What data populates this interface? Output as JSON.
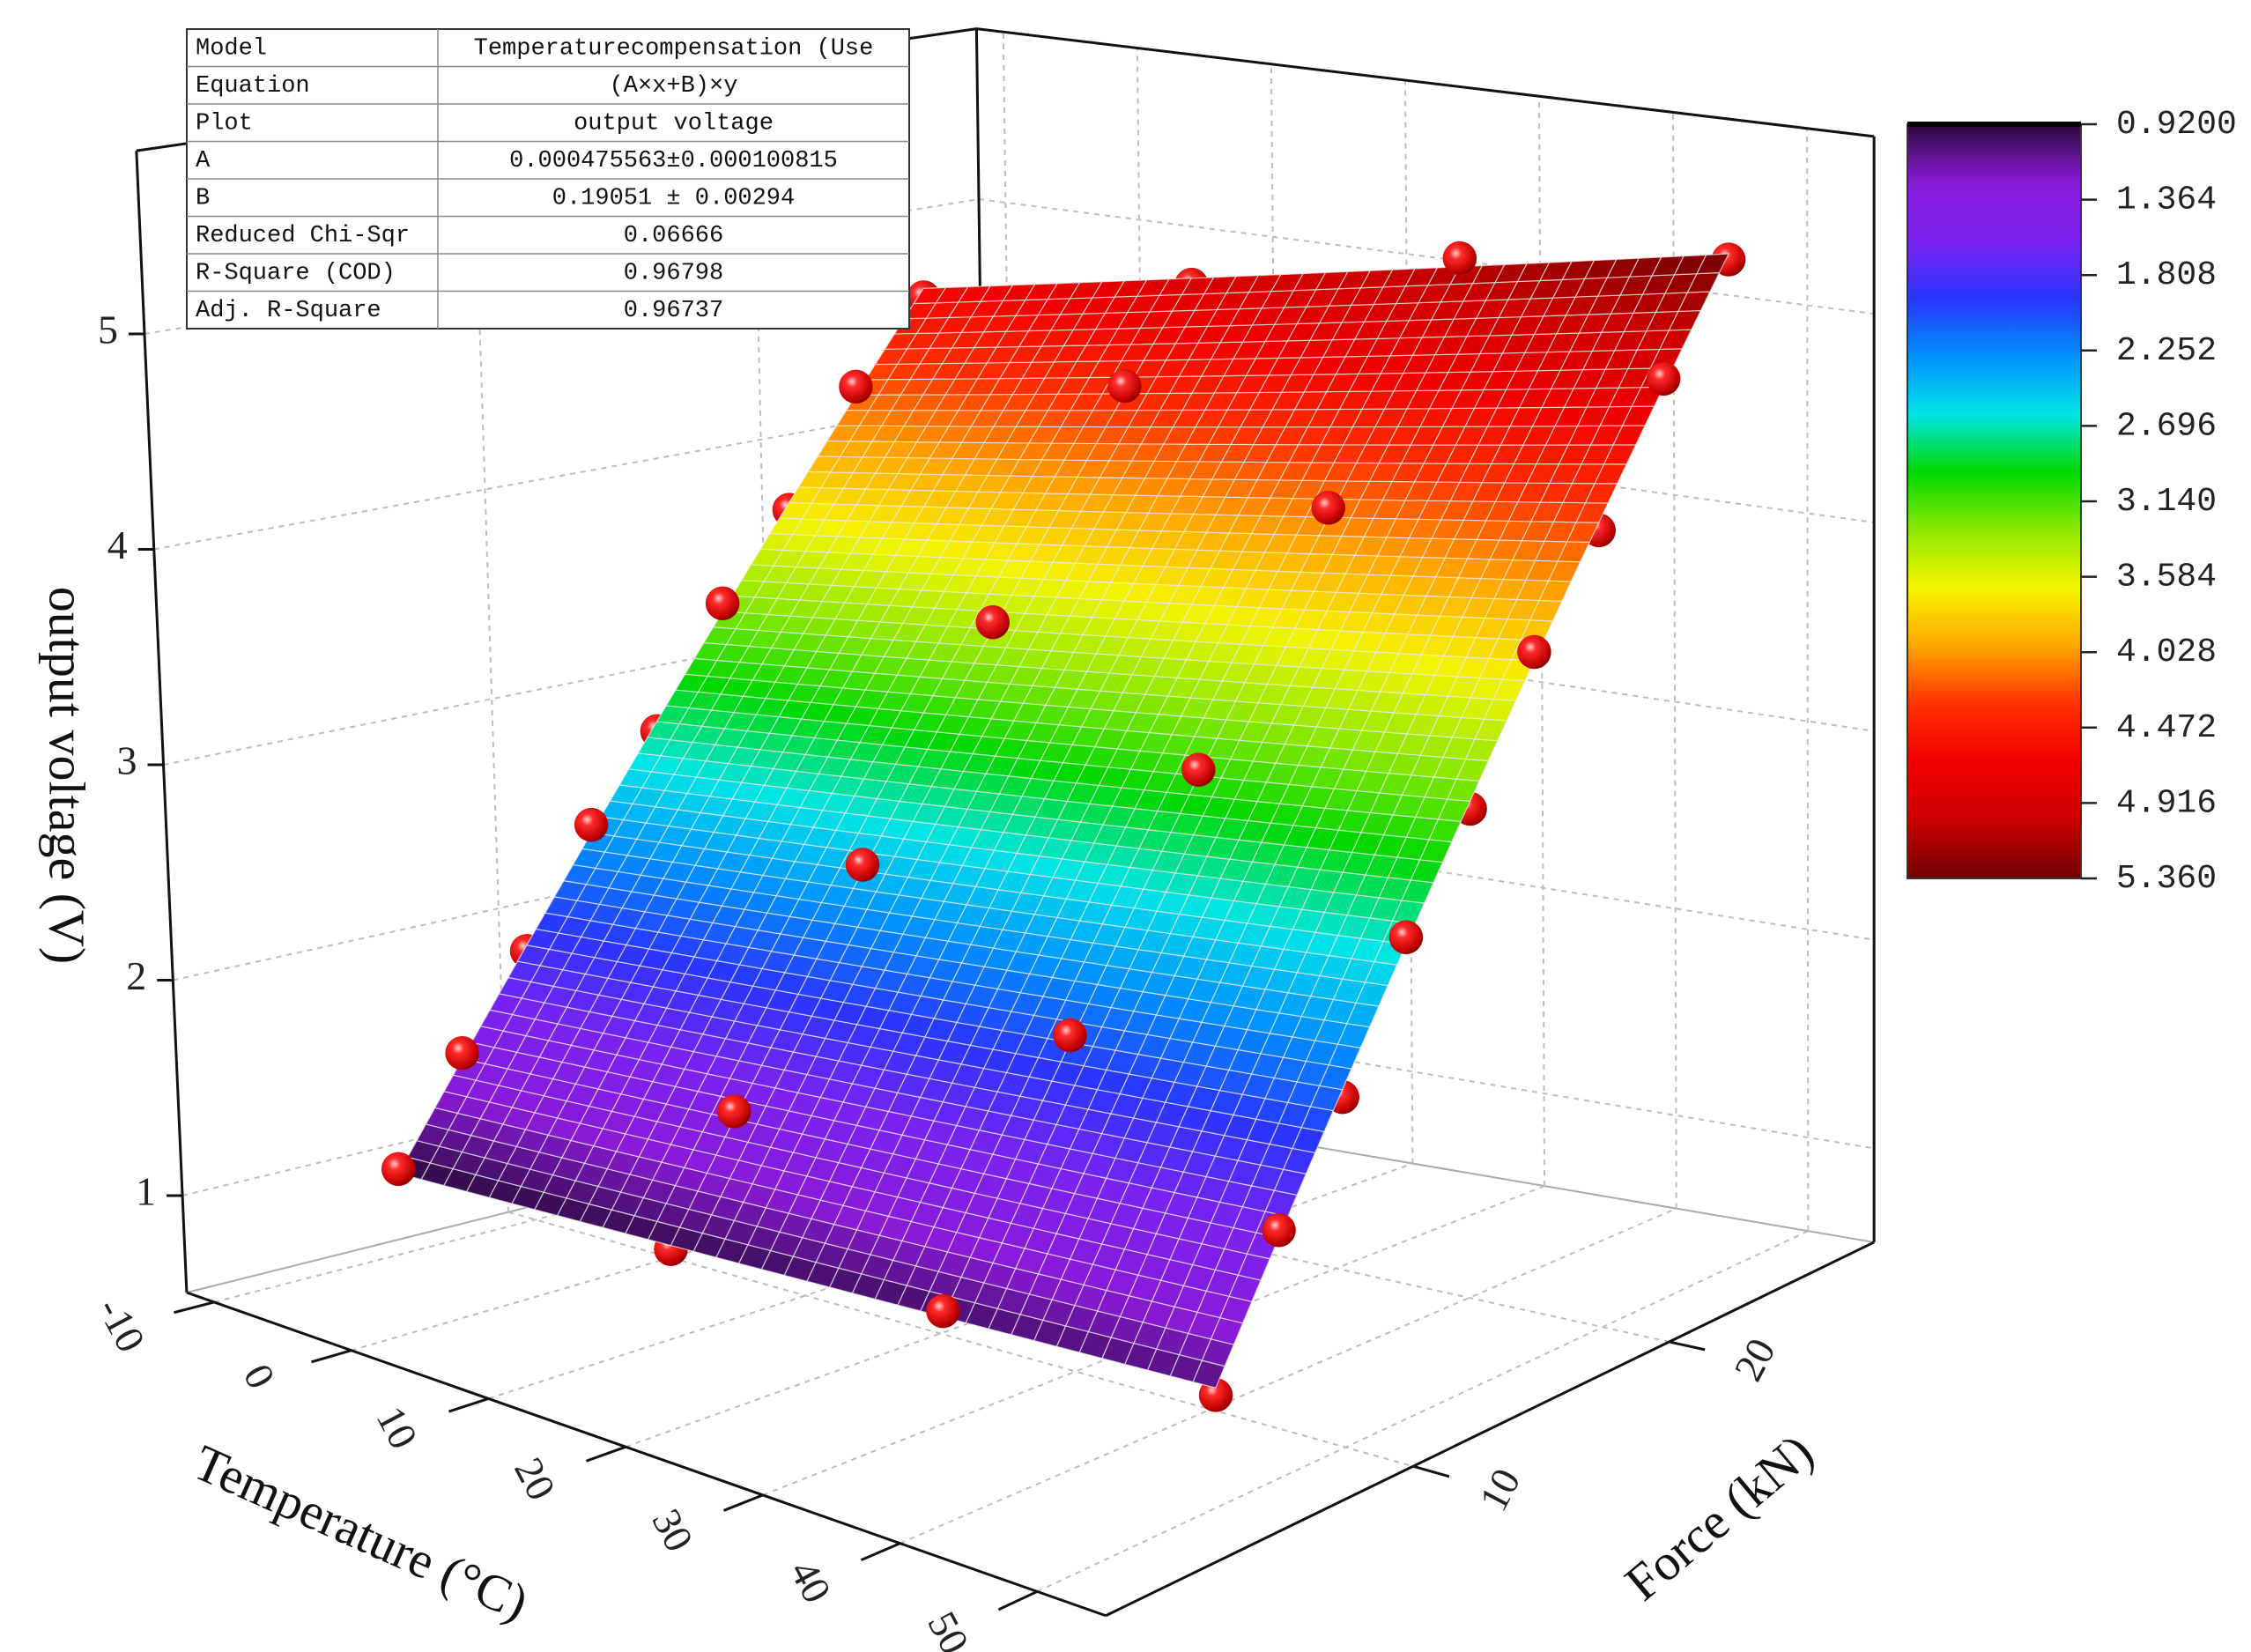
{
  "chart_data": {
    "type": "surface3d",
    "x_label": "Temperature (°C)",
    "y_label": "Force (kN)",
    "z_label": "output voltage (V)",
    "xlim": [
      -12,
      55
    ],
    "xticks": [
      -10,
      0,
      10,
      20,
      30,
      40,
      50
    ],
    "ylim": [
      -2,
      28
    ],
    "yticks": [
      10,
      20
    ],
    "zlim": [
      0.55,
      5.85
    ],
    "zticks": [
      1,
      2,
      3,
      4,
      5
    ],
    "grid": true,
    "surface": {
      "x": [
        -10,
        50
      ],
      "y": [
        5,
        25
      ],
      "z": [
        [
          0.929,
          4.644
        ],
        [
          1.072,
          5.357
        ]
      ]
    },
    "points": {
      "color": "#e00000",
      "x": [
        -10,
        -10,
        -10,
        -10,
        -10,
        -10,
        -10,
        -10,
        -10,
        10,
        10,
        10,
        10,
        10,
        10,
        10,
        10,
        10,
        30,
        30,
        30,
        30,
        30,
        30,
        30,
        30,
        30,
        50,
        50,
        50,
        50,
        50,
        50,
        50,
        50,
        50
      ],
      "y": [
        5,
        7.5,
        10,
        12.5,
        15,
        17.5,
        20,
        22.5,
        25,
        5,
        7.5,
        10,
        12.5,
        15,
        17.5,
        20,
        22.5,
        25,
        5,
        7.5,
        10,
        12.5,
        15,
        17.5,
        20,
        22.5,
        25,
        5,
        7.5,
        10,
        12.5,
        15,
        17.5,
        20,
        22.5,
        25
      ],
      "values": [
        0.95,
        1.42,
        1.83,
        2.36,
        2.74,
        3.29,
        3.68,
        4.22,
        4.6,
        0.96,
        1.5,
        1.93,
        2.47,
        2.9,
        3.45,
        3.88,
        4.43,
        4.85,
        1.05,
        1.51,
        2.08,
        2.53,
        3.1,
        3.55,
        4.14,
        4.58,
        5.16,
        1.04,
        1.64,
        2.11,
        2.71,
        3.18,
        3.79,
        4.25,
        4.86,
        5.33
      ]
    },
    "colormap": [
      "#2a0a3a",
      "#8a1ad8",
      "#7b22f0",
      "#2a35ff",
      "#0090ff",
      "#00e5e5",
      "#00d800",
      "#8ee800",
      "#f5f500",
      "#ffa500",
      "#ff3000",
      "#f00000",
      "#cc0000",
      "#700000"
    ],
    "colorbar_ticks": [
      {
        "value": 0.92,
        "label": "0.9200"
      },
      1.364,
      1.808,
      2.252,
      2.696,
      {
        "value": 3.14,
        "label": "3.140"
      },
      3.584,
      4.028,
      4.472,
      4.916,
      {
        "value": 5.36,
        "label": "5.360"
      }
    ]
  },
  "fit_table": {
    "rows": [
      [
        "Model",
        "Temperaturecompensation (Use"
      ],
      [
        "Equation",
        "(A×x+B)×y"
      ],
      [
        "Plot",
        "output voltage"
      ],
      [
        "A",
        "0.000475563±0.000100815"
      ],
      [
        "B",
        "0.19051 ± 0.00294"
      ],
      [
        "Reduced Chi-Sqr",
        "0.06666"
      ],
      [
        "R-Square (COD)",
        "0.96798"
      ],
      [
        "Adj. R-Square",
        "0.96737"
      ]
    ]
  }
}
